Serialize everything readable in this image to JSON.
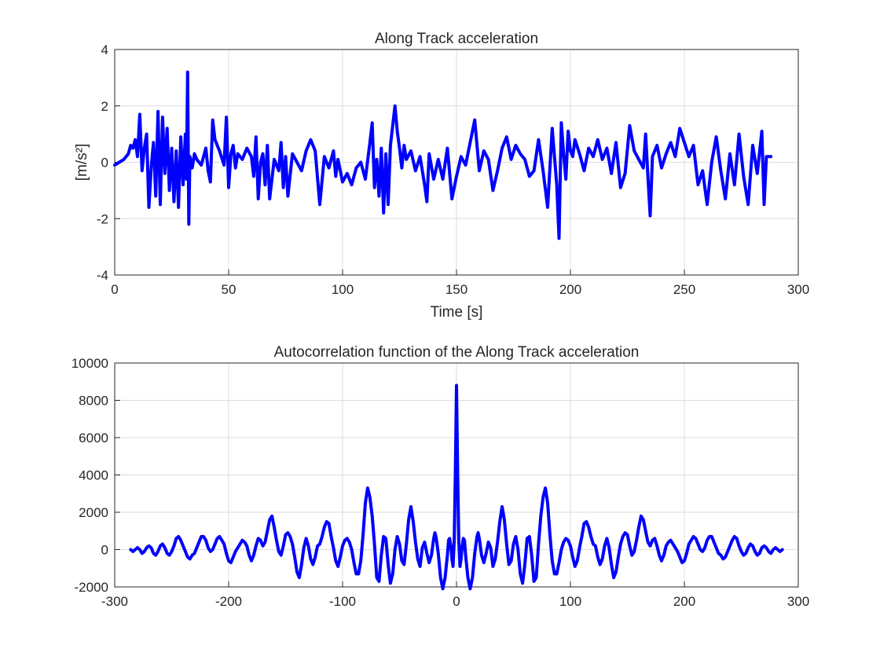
{
  "colors": {
    "series": "#0000ff",
    "grid": "#dcdcdc",
    "axes": "#262626",
    "background": "#ffffff"
  },
  "chart_data": [
    {
      "type": "line",
      "title": "Along Track acceleration",
      "xlabel": "Time [s]",
      "ylabel": "[m/s²]",
      "xlim": [
        0,
        300
      ],
      "ylim": [
        -4,
        4
      ],
      "xticks": [
        0,
        50,
        100,
        150,
        200,
        250,
        300
      ],
      "yticks": [
        -4,
        -2,
        0,
        2,
        4
      ],
      "xtick_labels": [
        "0",
        "50",
        "100",
        "150",
        "200",
        "250",
        "300"
      ],
      "ytick_labels": [
        "-4",
        "-2",
        "0",
        "2",
        "4"
      ],
      "grid": true,
      "series": [
        {
          "color": "#0000ff",
          "x": [
            0,
            2,
            4,
            6,
            7,
            8,
            9,
            10,
            11,
            12,
            13,
            14,
            15,
            16,
            17,
            18,
            19,
            20,
            21,
            22,
            23,
            24,
            25,
            26,
            27,
            28,
            29,
            30,
            31,
            31.5,
            32,
            32.5,
            33,
            34,
            35,
            36,
            38,
            40,
            41,
            42,
            43,
            44,
            46,
            48,
            49,
            50,
            51,
            52,
            53,
            54,
            56,
            58,
            60,
            61,
            62,
            63,
            64,
            65,
            66,
            67,
            68,
            70,
            72,
            73,
            74,
            75,
            76,
            78,
            80,
            82,
            84,
            86,
            88,
            90,
            92,
            94,
            96,
            97,
            98,
            100,
            102,
            104,
            106,
            108,
            110,
            112,
            113,
            114,
            115,
            116,
            117,
            118,
            119,
            120,
            121,
            122,
            123,
            124,
            125,
            126,
            127,
            128,
            130,
            132,
            134,
            136,
            137,
            138,
            140,
            142,
            144,
            146,
            148,
            150,
            152,
            154,
            156,
            158,
            160,
            162,
            164,
            166,
            168,
            170,
            172,
            174,
            176,
            178,
            180,
            182,
            184,
            186,
            188,
            190,
            192,
            194,
            195,
            196,
            197,
            198,
            199,
            200,
            201,
            202,
            204,
            206,
            208,
            210,
            212,
            214,
            216,
            218,
            220,
            222,
            224,
            226,
            228,
            230,
            232,
            233,
            234,
            235,
            236,
            238,
            240,
            242,
            244,
            246,
            248,
            250,
            252,
            254,
            256,
            258,
            260,
            262,
            264,
            266,
            268,
            270,
            272,
            274,
            276,
            278,
            280,
            282,
            284,
            285,
            286,
            288
          ],
          "y": [
            -0.1,
            0,
            0.1,
            0.3,
            0.6,
            0.5,
            0.8,
            0.2,
            1.7,
            -0.3,
            0.5,
            1.0,
            -1.6,
            -0.2,
            0.7,
            -1.2,
            1.8,
            -1.5,
            1.6,
            -0.4,
            1.2,
            -1.0,
            0.5,
            -1.4,
            0.4,
            -1.6,
            0.9,
            -0.8,
            1.0,
            -0.6,
            3.2,
            -2.2,
            0.2,
            -0.2,
            0.3,
            0.1,
            -0.1,
            0.5,
            -0.3,
            -0.7,
            1.5,
            0.8,
            0.4,
            -0.1,
            1.6,
            -0.9,
            0.3,
            0.6,
            -0.2,
            0.3,
            0.1,
            0.5,
            0.2,
            -0.5,
            0.9,
            -1.3,
            0.0,
            0.3,
            -0.8,
            0.6,
            -1.3,
            0.1,
            -0.3,
            0.7,
            -0.9,
            0.2,
            -1.2,
            0.3,
            0.0,
            -0.3,
            0.4,
            0.8,
            0.4,
            -1.5,
            0.2,
            -0.2,
            0.4,
            -0.5,
            0.1,
            -0.7,
            -0.4,
            -0.8,
            -0.2,
            0.0,
            -0.6,
            0.7,
            1.4,
            -0.9,
            0.1,
            -1.2,
            0.5,
            -1.8,
            0.3,
            -1.5,
            0.6,
            1.3,
            2.0,
            1.1,
            0.5,
            -0.2,
            0.6,
            0.1,
            0.4,
            -0.3,
            0.2,
            -0.8,
            -1.4,
            0.3,
            -0.6,
            0.1,
            -0.6,
            0.5,
            -1.3,
            -0.5,
            0.2,
            -0.1,
            0.7,
            1.5,
            -0.3,
            0.4,
            0.1,
            -1.0,
            -0.3,
            0.5,
            0.9,
            0.1,
            0.6,
            0.3,
            0.1,
            -0.5,
            -0.3,
            0.8,
            -0.3,
            -1.6,
            1.2,
            -0.8,
            -2.7,
            1.4,
            0.3,
            -0.6,
            1.1,
            0.4,
            0.2,
            0.8,
            0.3,
            -0.3,
            0.5,
            0.2,
            0.8,
            0.1,
            0.5,
            -0.4,
            0.7,
            -0.9,
            -0.4,
            1.3,
            0.4,
            0.1,
            -0.2,
            1.0,
            -0.5,
            -1.9,
            0.2,
            0.6,
            -0.2,
            0.3,
            0.7,
            0.2,
            1.2,
            0.7,
            0.2,
            0.6,
            -0.8,
            -0.3,
            -1.5,
            0.0,
            0.9,
            -0.3,
            -1.3,
            0.3,
            -0.8,
            1.0,
            -0.5,
            -1.5,
            0.6,
            -0.4,
            1.1,
            -1.5,
            0.2,
            0.2
          ]
        }
      ]
    },
    {
      "type": "line",
      "title": "Autocorrelation function of the Along Track acceleration",
      "xlabel": "",
      "ylabel": "",
      "xlim": [
        -300,
        300
      ],
      "ylim": [
        -2000,
        10000
      ],
      "xticks": [
        -300,
        -200,
        -100,
        0,
        100,
        200,
        300
      ],
      "yticks": [
        -2000,
        0,
        2000,
        4000,
        6000,
        8000,
        10000
      ],
      "xtick_labels": [
        "-300",
        "-200",
        "-100",
        "0",
        "100",
        "200",
        "300"
      ],
      "ytick_labels": [
        "-2000",
        "0",
        "2000",
        "4000",
        "6000",
        "8000",
        "10000"
      ],
      "grid": true,
      "series": [
        {
          "color": "#0000ff",
          "x": [
            0,
            1,
            2,
            3,
            4,
            5,
            6,
            7,
            8,
            10,
            12,
            14,
            16,
            18,
            19,
            20,
            22,
            24,
            26,
            28,
            30,
            32,
            34,
            36,
            38,
            40,
            42,
            44,
            46,
            48,
            50,
            52,
            54,
            56,
            58,
            60,
            62,
            64,
            66,
            68,
            70,
            72,
            74,
            76,
            78,
            80,
            82,
            84,
            86,
            88,
            90,
            92,
            94,
            96,
            98,
            100,
            102,
            104,
            106,
            108,
            110,
            112,
            114,
            116,
            118,
            120,
            122,
            124,
            126,
            128,
            130,
            132,
            134,
            136,
            138,
            140,
            142,
            144,
            146,
            148,
            150,
            152,
            154,
            156,
            158,
            160,
            162,
            164,
            166,
            168,
            170,
            172,
            174,
            176,
            178,
            180,
            182,
            184,
            186,
            188,
            190,
            192,
            194,
            196,
            198,
            200,
            202,
            204,
            206,
            208,
            210,
            212,
            214,
            216,
            218,
            220,
            222,
            224,
            226,
            228,
            230,
            232,
            234,
            236,
            238,
            240,
            242,
            244,
            246,
            248,
            250,
            252,
            254,
            256,
            258,
            260,
            262,
            264,
            266,
            268,
            270,
            272,
            274,
            276,
            278,
            280,
            282,
            284,
            286
          ],
          "y": [
            8800,
            4000,
            500,
            -900,
            -500,
            200,
            600,
            500,
            -300,
            -1500,
            -2100,
            -1500,
            -200,
            700,
            900,
            600,
            -300,
            -700,
            -200,
            400,
            100,
            -900,
            -500,
            400,
            1500,
            2300,
            1600,
            300,
            -800,
            -600,
            300,
            700,
            0,
            -1300,
            -1800,
            -800,
            600,
            700,
            -300,
            -1700,
            -1500,
            300,
            1800,
            2800,
            3300,
            2500,
            800,
            -600,
            -1300,
            -1300,
            -700,
            0,
            400,
            600,
            500,
            200,
            -400,
            -900,
            -600,
            100,
            700,
            1400,
            1500,
            1200,
            700,
            300,
            200,
            -400,
            -800,
            -500,
            200,
            600,
            100,
            -800,
            -1500,
            -1200,
            -400,
            300,
            700,
            900,
            800,
            200,
            -300,
            -100,
            500,
            1200,
            1800,
            1600,
            1000,
            400,
            200,
            500,
            600,
            200,
            -300,
            -600,
            -300,
            200,
            400,
            500,
            300,
            100,
            -100,
            -400,
            -700,
            -600,
            -200,
            300,
            500,
            700,
            600,
            300,
            0,
            -100,
            100,
            500,
            700,
            700,
            400,
            100,
            -200,
            -300,
            -500,
            -400,
            -100,
            200,
            500,
            700,
            600,
            200,
            -100,
            -300,
            -200,
            100,
            300,
            200,
            -100,
            -300,
            -200,
            100,
            200,
            100,
            -100,
            -200,
            0,
            100,
            0,
            -100,
            0
          ]
        }
      ]
    }
  ]
}
